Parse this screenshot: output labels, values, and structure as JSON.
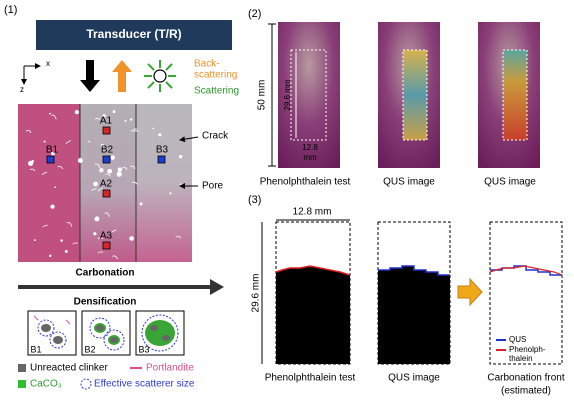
{
  "panel1": {
    "label": "(1)",
    "transducer": "Transducer (T/R)",
    "axis_x": "x",
    "axis_z": "z",
    "backscattering": [
      "Back-",
      "scattering"
    ],
    "scattering": "Scattering",
    "points": [
      "A1",
      "B1",
      "B2",
      "B3",
      "A2",
      "A3"
    ],
    "crack": "Crack",
    "pore": "Pore",
    "carbonation": "Carbonation",
    "densification": "Densification",
    "insets": [
      "B1",
      "B2",
      "B3"
    ],
    "legend": {
      "clinker": "Unreacted clinker",
      "portlandite": "Portlandite",
      "caco3": "CaCO₃",
      "scatterer": "Effective scatterer size"
    }
  },
  "panel2": {
    "label": "(2)",
    "height": "50 mm",
    "roi_height": "29.6 mm",
    "roi_width": [
      "12.8",
      "mm"
    ],
    "captions": [
      "Phenolphthalein test",
      "QUS image",
      "QUS image"
    ]
  },
  "panel3": {
    "label": "(3)",
    "width": "12.8 mm",
    "height": "29.6 mm",
    "legend": {
      "qus": "QUS",
      "phenol": [
        "Phenolph-",
        "thalein"
      ]
    },
    "captions": [
      "Phenolphthalein test",
      "QUS image"
    ],
    "caption3": [
      "Carbonation front",
      "(estimated)"
    ]
  }
}
